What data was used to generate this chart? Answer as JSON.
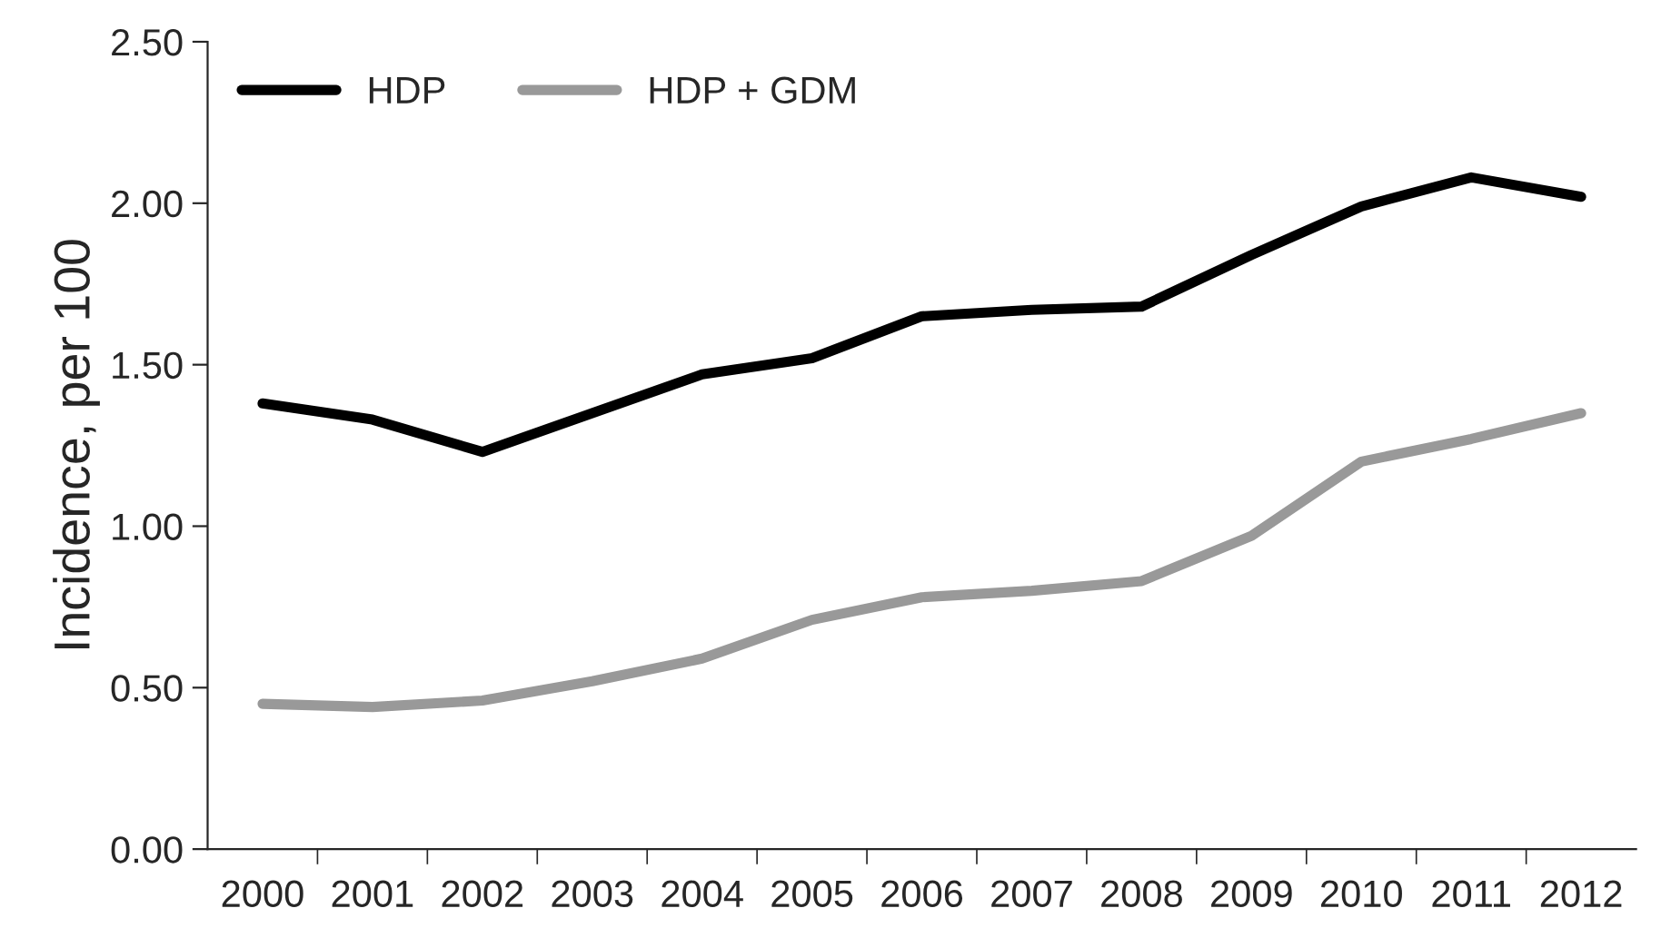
{
  "chart_data": {
    "type": "line",
    "ylabel": "Incidence, per 100",
    "categories": [
      "2000",
      "2001",
      "2002",
      "2003",
      "2004",
      "2005",
      "2006",
      "2007",
      "2008",
      "2009",
      "2010",
      "2011",
      "2012"
    ],
    "series": [
      {
        "name": "HDP",
        "color": "#000000",
        "values": [
          1.38,
          1.33,
          1.23,
          1.35,
          1.47,
          1.52,
          1.65,
          1.67,
          1.68,
          1.84,
          1.99,
          2.08,
          2.02
        ]
      },
      {
        "name": "HDP + GDM",
        "color": "#999999",
        "values": [
          0.45,
          0.44,
          0.46,
          0.52,
          0.59,
          0.71,
          0.78,
          0.8,
          0.83,
          0.97,
          1.2,
          1.27,
          1.35
        ]
      }
    ],
    "ylim": [
      0,
      2.5
    ],
    "yticks": [
      {
        "value": 0,
        "label": "0.00"
      },
      {
        "value": 0.5,
        "label": "0.50"
      },
      {
        "value": 1,
        "label": "1.00"
      },
      {
        "value": 1.5,
        "label": "1.50"
      },
      {
        "value": 2,
        "label": "2.00"
      },
      {
        "value": 2.5,
        "label": "2.50"
      }
    ],
    "grid": false,
    "legend": "top left",
    "marker": "none",
    "line_style": "solid"
  }
}
